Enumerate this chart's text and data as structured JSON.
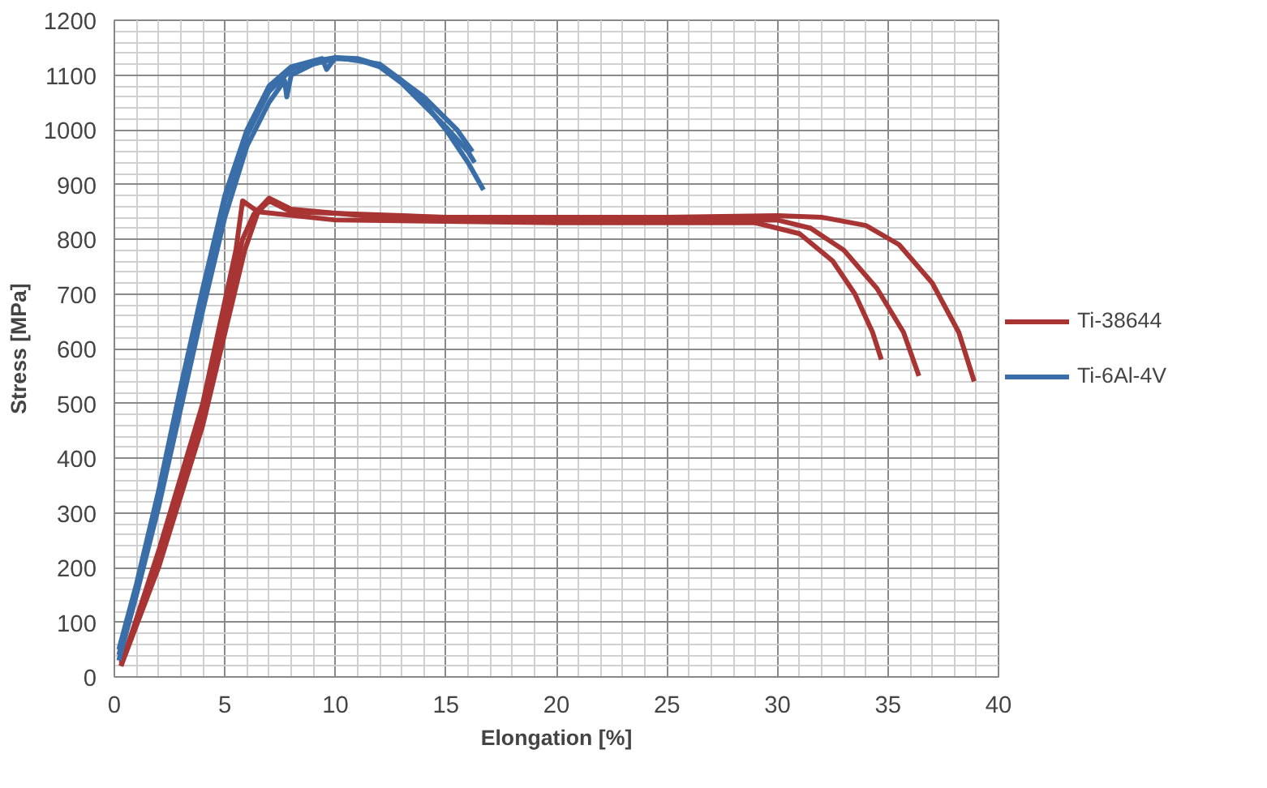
{
  "chart_data": {
    "type": "line",
    "xlabel": "Elongation [%]",
    "ylabel": "Stress [MPa]",
    "xlim": [
      0,
      40
    ],
    "ylim": [
      0,
      1200
    ],
    "xticks": [
      0,
      5,
      10,
      15,
      20,
      25,
      30,
      35,
      40
    ],
    "yticks": [
      0,
      100,
      200,
      300,
      400,
      500,
      600,
      700,
      800,
      900,
      1000,
      1100,
      1200
    ],
    "grid": true,
    "legend": "right",
    "line_style": "solid",
    "marker": "none",
    "series": [
      {
        "name": "Ti-38644",
        "color": "#a83434",
        "x": [
          0.3,
          2,
          4,
          5.5,
          5.8,
          6.5,
          10,
          20,
          29,
          31,
          32.5,
          33.5,
          34.3,
          34.7
        ],
        "values": [
          20,
          230,
          500,
          780,
          870,
          850,
          835,
          830,
          830,
          810,
          760,
          700,
          630,
          580
        ]
      },
      {
        "color": "#a83434",
        "x": [
          0.3,
          2,
          4,
          5.8,
          6.3,
          7,
          8,
          12,
          20,
          30,
          31.5,
          33,
          34.5,
          35.7,
          36.4
        ],
        "values": [
          25,
          210,
          480,
          800,
          845,
          875,
          855,
          840,
          835,
          835,
          820,
          780,
          710,
          630,
          550
        ]
      },
      {
        "color": "#a83434",
        "x": [
          0.3,
          2,
          4,
          5.9,
          6.5,
          7,
          8,
          15,
          25,
          30,
          32,
          34,
          35.5,
          37,
          38.2,
          38.9
        ],
        "values": [
          20,
          200,
          460,
          780,
          850,
          870,
          850,
          840,
          840,
          843,
          840,
          825,
          790,
          720,
          630,
          540
        ]
      },
      {
        "name": "Ti-6Al-4V",
        "color": "#3a6ea8",
        "x": [
          0.2,
          1,
          2,
          3,
          4,
          5,
          6,
          7,
          8,
          9,
          10,
          11,
          12,
          13,
          14,
          15,
          16,
          16.7
        ],
        "values": [
          40,
          160,
          330,
          520,
          700,
          870,
          990,
          1070,
          1110,
          1125,
          1132,
          1130,
          1118,
          1090,
          1050,
          1000,
          940,
          890
        ]
      },
      {
        "color": "#3a6ea8",
        "x": [
          0.2,
          1,
          2,
          3,
          4,
          5,
          6,
          7,
          7.7,
          7.8,
          8,
          9,
          10,
          11,
          12,
          13,
          14,
          15,
          16,
          16.3
        ],
        "values": [
          30,
          150,
          310,
          490,
          670,
          840,
          970,
          1050,
          1090,
          1060,
          1100,
          1120,
          1130,
          1128,
          1115,
          1085,
          1045,
          1005,
          960,
          940
        ]
      },
      {
        "color": "#3a6ea8",
        "x": [
          0.2,
          1,
          2,
          3,
          4,
          5,
          6,
          7,
          8,
          9.4,
          9.6,
          10,
          12,
          14,
          15.5,
          16.2
        ],
        "values": [
          50,
          170,
          340,
          530,
          710,
          880,
          1000,
          1080,
          1115,
          1130,
          1110,
          1132,
          1120,
          1060,
          1000,
          960
        ]
      }
    ]
  }
}
